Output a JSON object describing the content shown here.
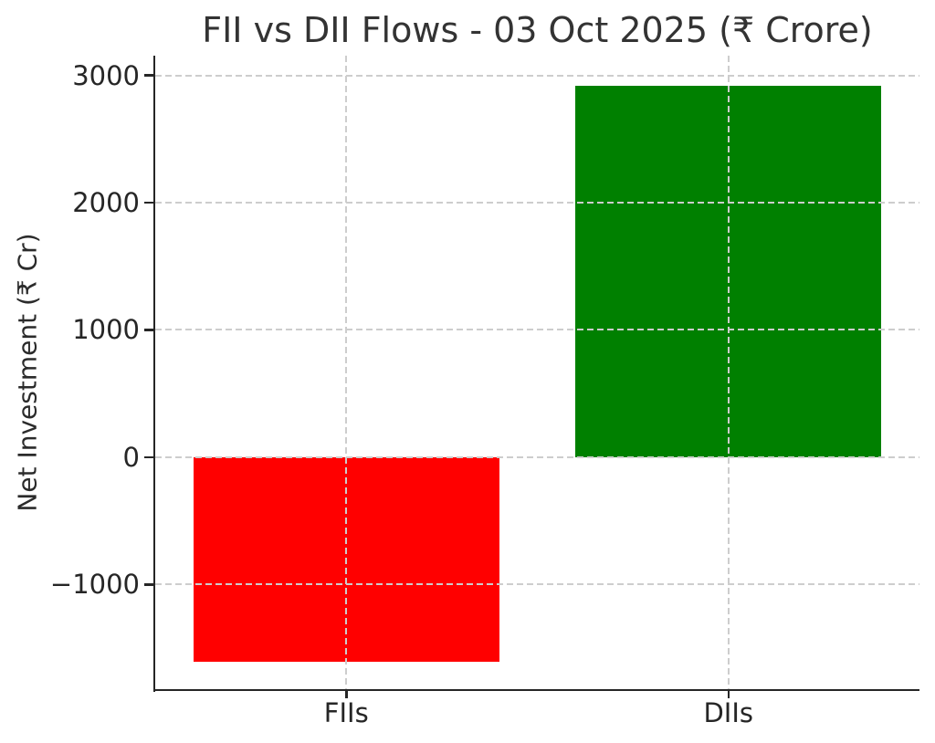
{
  "chart_data": {
    "type": "bar",
    "title": "FII vs DII Flows - 03 Oct 2025 (₹ Crore)",
    "xlabel": "",
    "ylabel": "Net Investment (₹ Cr)",
    "categories": [
      "FIIs",
      "DIIs"
    ],
    "values": [
      -1605,
      2920
    ],
    "bar_colors": [
      "#ff0000",
      "#008000"
    ],
    "bar_width": 0.8,
    "ylim": [
      -1830,
      3155
    ],
    "yticks": [
      {
        "value": -1000,
        "label": "−1000"
      },
      {
        "value": 0,
        "label": "0"
      },
      {
        "value": 1000,
        "label": "1000"
      },
      {
        "value": 2000,
        "label": "2000"
      },
      {
        "value": 3000,
        "label": "3000"
      }
    ],
    "grid": "dashed, both axes, drawn above bars",
    "legend": "none",
    "spines": [
      "left",
      "bottom"
    ],
    "colors": {
      "grid": "#cdcdcd",
      "spine": "#262626",
      "tick_text": "#262626",
      "title_text": "#333333",
      "background": "#ffffff"
    }
  }
}
